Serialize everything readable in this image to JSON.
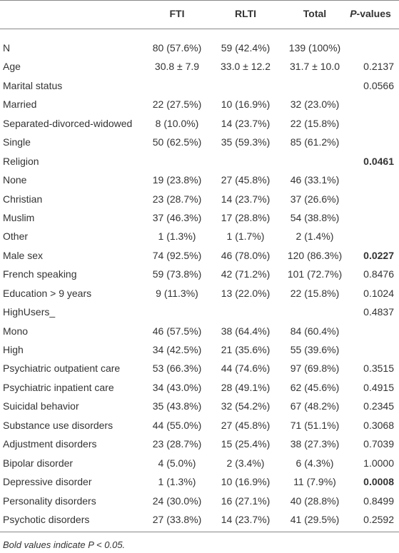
{
  "table": {
    "header": [
      null,
      "FTI",
      "RLTI",
      "Total",
      "P-values"
    ],
    "rows": [
      [
        "N",
        "80 (57.6%)",
        "59 (42.4%)",
        "139 (100%)",
        null
      ],
      [
        "Age",
        "30.8 ± 7.9",
        "33.0 ± 12.2",
        "31.7 ± 10.0",
        "0.2137"
      ],
      [
        "Marital status",
        null,
        null,
        null,
        "0.0566"
      ],
      [
        "Married",
        "22 (27.5%)",
        "10 (16.9%)",
        "32 (23.0%)",
        null
      ],
      [
        "Separated-divorced-widowed",
        "8 (10.0%)",
        "14 (23.7%)",
        "22 (15.8%)",
        null
      ],
      [
        "Single",
        "50 (62.5%)",
        "35 (59.3%)",
        "85 (61.2%)",
        null
      ],
      [
        "Religion",
        null,
        null,
        null,
        "0.0461"
      ],
      [
        "None",
        "19 (23.8%)",
        "27 (45.8%)",
        "46 (33.1%)",
        null
      ],
      [
        "Christian",
        "23 (28.7%)",
        "14 (23.7%)",
        "37 (26.6%)",
        null
      ],
      [
        "Muslim",
        "37 (46.3%)",
        "17 (28.8%)",
        "54 (38.8%)",
        null
      ],
      [
        "Other",
        "1 (1.3%)",
        "1 (1.7%)",
        "2 (1.4%)",
        null
      ],
      [
        "Male sex",
        "74 (92.5%)",
        "46 (78.0%)",
        "120 (86.3%)",
        "0.0227"
      ],
      [
        "French speaking",
        "59 (73.8%)",
        "42 (71.2%)",
        "101 (72.7%)",
        "0.8476"
      ],
      [
        "Education > 9 years",
        "9 (11.3%)",
        "13 (22.0%)",
        "22 (15.8%)",
        "0.1024"
      ],
      [
        "HighUsers_",
        null,
        null,
        null,
        "0.4837"
      ],
      [
        "Mono",
        "46 (57.5%)",
        "38 (64.4%)",
        "84 (60.4%)",
        null
      ],
      [
        "High",
        "34 (42.5%)",
        "21 (35.6%)",
        "55 (39.6%)",
        null
      ],
      [
        "Psychiatric outpatient care",
        "53 (66.3%)",
        "44 (74.6%)",
        "97 (69.8%)",
        "0.3515"
      ],
      [
        "Psychiatric inpatient care",
        "34 (43.0%)",
        "28 (49.1%)",
        "62 (45.6%)",
        "0.4915"
      ],
      [
        "Suicidal behavior",
        "35 (43.8%)",
        "32 (54.2%)",
        "67 (48.2%)",
        "0.2345"
      ],
      [
        "Substance use disorders",
        "44 (55.0%)",
        "27 (45.8%)",
        "71 (51.1%)",
        "0.3068"
      ],
      [
        "Adjustment disorders",
        "23 (28.7%)",
        "15 (25.4%)",
        "38 (27.3%)",
        "0.7039"
      ],
      [
        "Bipolar disorder",
        "4 (5.0%)",
        "2 (3.4%)",
        "6 (4.3%)",
        "1.0000"
      ],
      [
        "Depressive disorder",
        "1 (1.3%)",
        "10 (16.9%)",
        "11 (7.9%)",
        "0.0008"
      ],
      [
        "Personality disorders",
        "24 (30.0%)",
        "16 (27.1%)",
        "40 (28.8%)",
        "0.8499"
      ],
      [
        "Psychotic disorders",
        "27 (33.8%)",
        "14 (23.7%)",
        "41 (29.5%)",
        "0.2592"
      ]
    ],
    "bold_rows": [
      6,
      11,
      23
    ],
    "footnote": "Bold values indicate P < 0.05."
  }
}
